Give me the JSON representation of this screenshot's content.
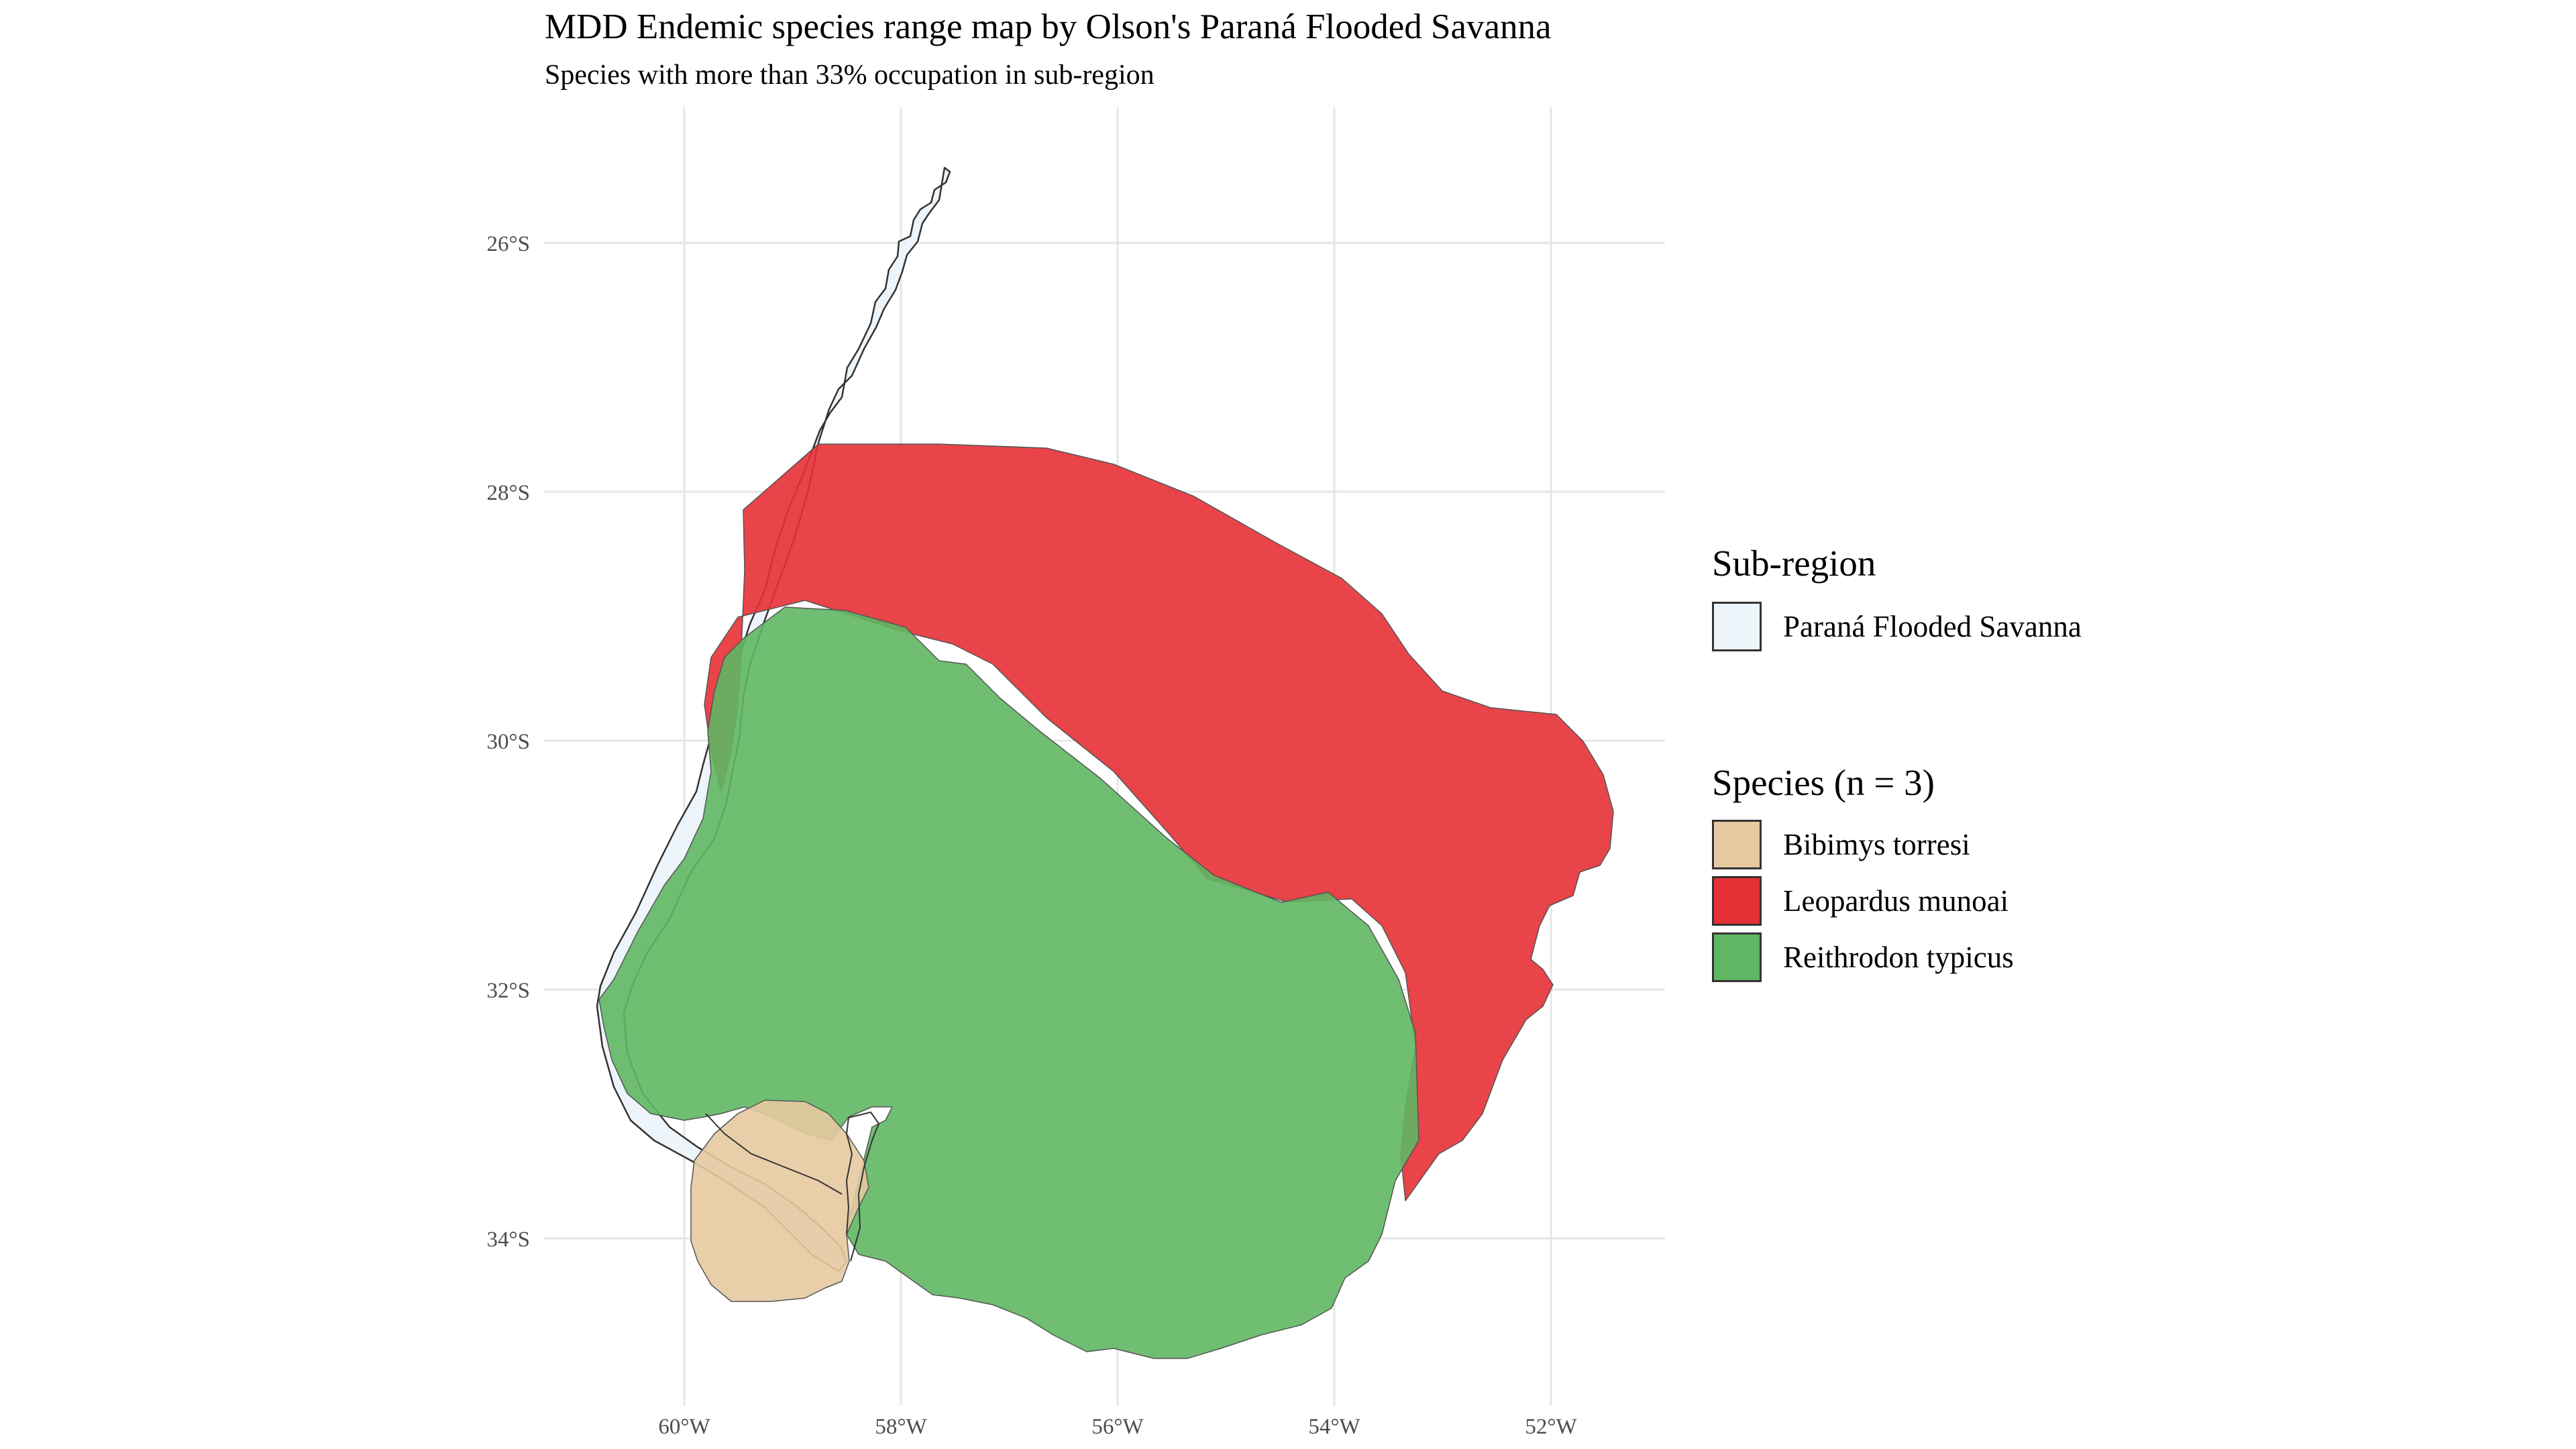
{
  "title": "MDD Endemic species range map by Olson's Paraná Flooded Savanna",
  "subtitle": "Species with more than 33% occupation in sub-region",
  "map": {
    "lat_ticks": [
      "26°S",
      "28°S",
      "30°S",
      "32°S",
      "34°S"
    ],
    "lon_ticks": [
      "60°W",
      "58°W",
      "56°W",
      "54°W",
      "52°W"
    ]
  },
  "legend": {
    "subregion": {
      "title": "Sub-region",
      "items": [
        {
          "label": "Paraná Flooded Savanna",
          "color": "#eef5fa"
        }
      ]
    },
    "species": {
      "title": "Species (n = 3)",
      "items": [
        {
          "label": "Bibimys torresi",
          "color": "#e6c9a0"
        },
        {
          "label": "Leopardus munoai",
          "color": "#e53035"
        },
        {
          "label": "Reithrodon typicus",
          "color": "#5fb763"
        }
      ]
    }
  }
}
